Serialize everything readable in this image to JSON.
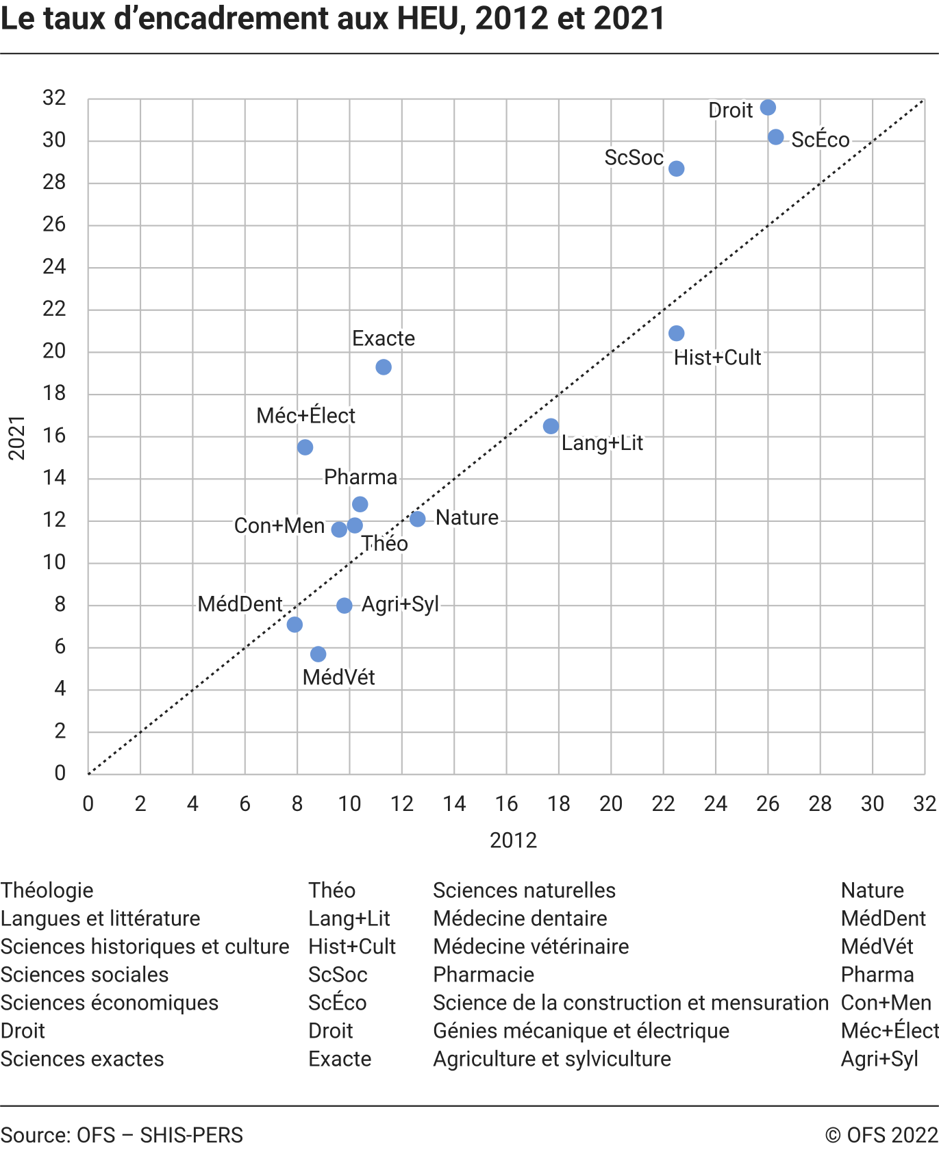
{
  "chart_data": {
    "type": "scatter",
    "title": "Le taux d’encadrement aux HEU, 2012 et 2021",
    "x_label": "2012",
    "y_label": "2021",
    "xlim": [
      0,
      32
    ],
    "ylim": [
      0,
      32
    ],
    "xticks": [
      0,
      2,
      4,
      6,
      8,
      10,
      12,
      14,
      16,
      18,
      20,
      22,
      24,
      26,
      28,
      30,
      32
    ],
    "yticks": [
      0,
      2,
      4,
      6,
      8,
      10,
      12,
      14,
      16,
      18,
      20,
      22,
      24,
      26,
      28,
      30,
      32
    ],
    "grid": true,
    "color": "#6a95d6",
    "diagonal": true,
    "labels": [
      "Droit",
      "ScÉco",
      "ScSoc",
      "Hist+Cult",
      "Exacte",
      "Lang+Lit",
      "Méc+Élect",
      "Pharma",
      "Théo",
      "Con+Men",
      "Nature",
      "Agri+Syl",
      "MédDent",
      "MédVét"
    ],
    "x": [
      26,
      26.3,
      22.5,
      22.5,
      11.3,
      17.7,
      8.3,
      10.4,
      10.2,
      9.6,
      12.6,
      9.8,
      7.9,
      8.8
    ],
    "y": [
      31.6,
      30.2,
      28.7,
      20.9,
      19.3,
      16.5,
      15.5,
      12.8,
      11.8,
      11.6,
      12.1,
      8.0,
      7.1,
      5.7
    ],
    "abbreviations": [
      [
        "Théologie",
        "Théo"
      ],
      [
        "Langues et littérature",
        "Lang+Lit"
      ],
      [
        "Sciences historiques et culture",
        "Hist+Cult"
      ],
      [
        "Sciences sociales",
        "ScSoc"
      ],
      [
        "Sciences économiques",
        "ScÉco"
      ],
      [
        "Droit",
        "Droit"
      ],
      [
        "Sciences exactes",
        "Exacte"
      ],
      [
        "Sciences naturelles",
        "Nature"
      ],
      [
        "Médecine dentaire",
        "MédDent"
      ],
      [
        "Médecine vétérinaire",
        "MédVét"
      ],
      [
        "Pharmacie",
        "Pharma"
      ],
      [
        "Science de la construction et mensuration",
        "Con+Men"
      ],
      [
        "Génies mécanique et électrique",
        "Méc+Élect"
      ],
      [
        "Agriculture et sylviculture",
        "Agri+Syl"
      ]
    ],
    "source": "Source: OFS – SHIS-PERS",
    "copyright": "© OFS 2022"
  }
}
